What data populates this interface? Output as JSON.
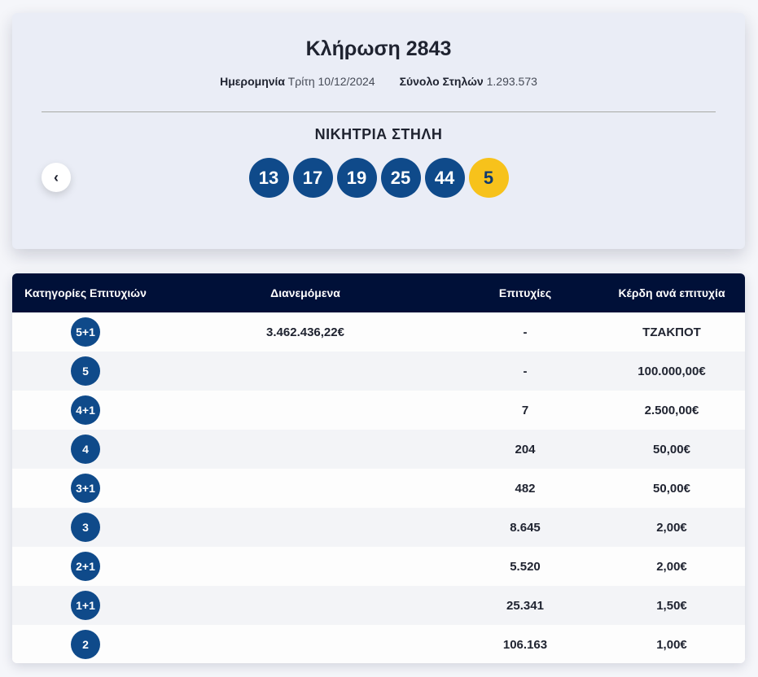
{
  "draw": {
    "title": "Κλήρωση 2843",
    "date_label": "Ημερομηνία",
    "date_value": "Τρίτη 10/12/2024",
    "columns_label": "Σύνολο Στηλών",
    "columns_value": "1.293.573",
    "winning_title": "ΝΙΚΗΤΡΙΑ ΣΤΗΛΗ",
    "numbers": [
      "13",
      "17",
      "19",
      "25",
      "44"
    ],
    "bonus": "5",
    "prev_icon": "‹"
  },
  "table": {
    "headers": [
      "Κατηγορίες Επιτυχιών",
      "Διανεμόμενα",
      "Επιτυχίες",
      "Κέρδη ανά επιτυχία"
    ],
    "rows": [
      {
        "category": "5+1",
        "distributed": "3.462.436,22€",
        "winners": "-",
        "prize": "ΤΖΑΚΠΟΤ"
      },
      {
        "category": "5",
        "distributed": "",
        "winners": "-",
        "prize": "100.000,00€"
      },
      {
        "category": "4+1",
        "distributed": "",
        "winners": "7",
        "prize": "2.500,00€"
      },
      {
        "category": "4",
        "distributed": "",
        "winners": "204",
        "prize": "50,00€"
      },
      {
        "category": "3+1",
        "distributed": "",
        "winners": "482",
        "prize": "50,00€"
      },
      {
        "category": "3",
        "distributed": "",
        "winners": "8.645",
        "prize": "2,00€"
      },
      {
        "category": "2+1",
        "distributed": "",
        "winners": "5.520",
        "prize": "2,00€"
      },
      {
        "category": "1+1",
        "distributed": "",
        "winners": "25.341",
        "prize": "1,50€"
      },
      {
        "category": "2",
        "distributed": "",
        "winners": "106.163",
        "prize": "1,00€"
      }
    ]
  },
  "colors": {
    "ball": "#0f4a8a",
    "bonus_ball": "#f7c21b",
    "table_header": "#001038"
  }
}
